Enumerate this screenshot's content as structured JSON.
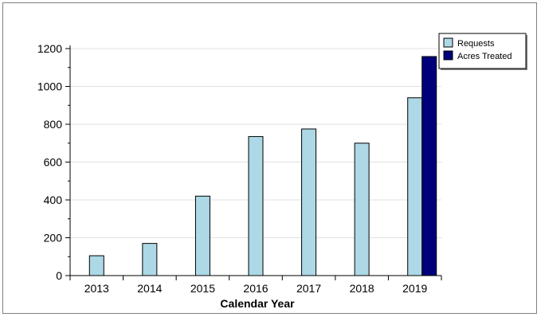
{
  "chart_data": {
    "type": "bar",
    "categories": [
      "2013",
      "2014",
      "2015",
      "2016",
      "2017",
      "2018",
      "2019"
    ],
    "series": [
      {
        "name": "Requests",
        "color": "#add8e6",
        "values": [
          105,
          170,
          420,
          735,
          775,
          700,
          940
        ]
      },
      {
        "name": "Acres Treated",
        "color": "#00007b",
        "values": [
          null,
          null,
          null,
          null,
          null,
          null,
          1158
        ]
      }
    ],
    "xlabel": "Calendar Year",
    "ylabel": "",
    "ylim": [
      0,
      1200
    ],
    "yticks": [
      "0",
      "200",
      "400",
      "600",
      "800",
      "1000",
      "1200"
    ],
    "grid": true,
    "legend_position": "top-right"
  }
}
